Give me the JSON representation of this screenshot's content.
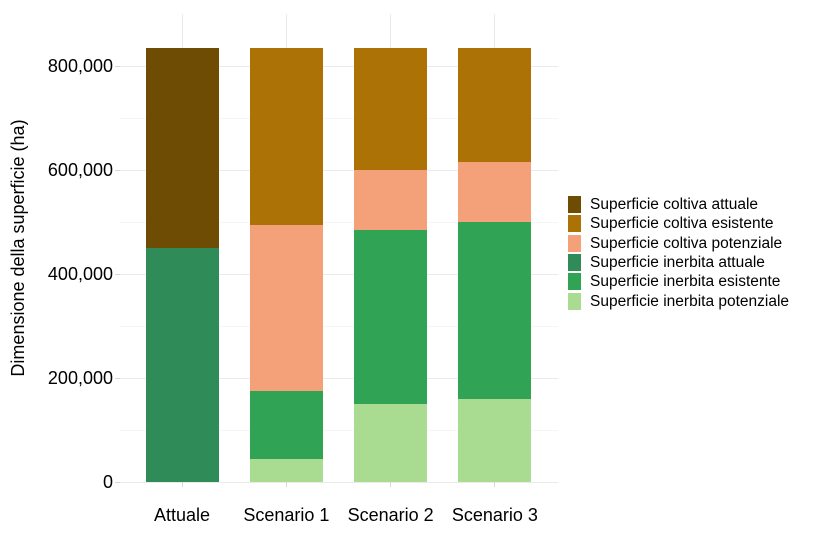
{
  "chart_data": {
    "type": "bar",
    "stacked": true,
    "title": "",
    "xlabel": "",
    "ylabel": "Dimensione della superficie (ha)",
    "categories": [
      "Attuale",
      "Scenario 1",
      "Scenario 2",
      "Scenario 3"
    ],
    "series": [
      {
        "name": "Superficie coltiva attuale",
        "color": "#6F4C03",
        "values": [
          385000,
          0,
          0,
          0
        ]
      },
      {
        "name": "Superficie coltiva esistente",
        "color": "#AD7205",
        "values": [
          0,
          340000,
          235000,
          220000
        ]
      },
      {
        "name": "Superficie coltiva potenziale",
        "color": "#F4A17A",
        "values": [
          0,
          320000,
          115000,
          115000
        ]
      },
      {
        "name": "Superficie inerbita attuale",
        "color": "#2F8B58",
        "values": [
          450000,
          0,
          0,
          0
        ]
      },
      {
        "name": "Superficie inerbita esistente",
        "color": "#31A354",
        "values": [
          0,
          130000,
          335000,
          340000
        ]
      },
      {
        "name": "Superficie inerbita potenziale",
        "color": "#A9DB90",
        "values": [
          0,
          45000,
          150000,
          160000
        ]
      }
    ],
    "category_totals": [
      835000,
      835000,
      835000,
      835000
    ],
    "ylim": [
      0,
      900000
    ],
    "y_ticks": [
      {
        "value": 0,
        "label": "0"
      },
      {
        "value": 200000,
        "label": "200,000"
      },
      {
        "value": 400000,
        "label": "400,000"
      },
      {
        "value": 600000,
        "label": "600,000"
      },
      {
        "value": 800000,
        "label": "800,000"
      }
    ],
    "y_minor_step": 100000,
    "grid": true,
    "legend_position": "right"
  },
  "colors": {
    "background": "#FFFFFF",
    "grid_major": "#EBEBEB",
    "grid_minor": "#F6F6F6",
    "axis_tick": "#D9D9D9",
    "text": "#000000"
  }
}
